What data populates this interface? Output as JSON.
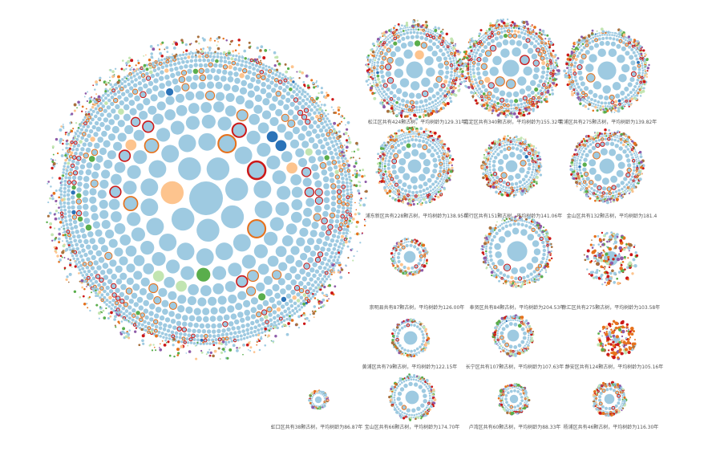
{
  "colors": {
    "base": "#9ecae1",
    "orange": "#e6711c",
    "red": "#cc1818",
    "green": "#5aae4c",
    "pale_green": "#c2e5b1",
    "peach": "#fdc48e",
    "dark_blue": "#2b73b8",
    "purple": "#8e5ba8",
    "brown": "#a8703d"
  },
  "districts": [
    {
      "id": "main",
      "caption": ""
    },
    {
      "id": "songjiang",
      "caption": "松江区共有424颗古树，平均树龄为129.31年"
    },
    {
      "id": "jiading",
      "caption": "嘉定区共有340颗古树，平均树龄为155.32年"
    },
    {
      "id": "qingpu",
      "caption": "青浦区共有275颗古树，平均树龄为139.82年"
    },
    {
      "id": "pudong",
      "caption": "浦东新区共有228颗古树，平均树龄为138.95年"
    },
    {
      "id": "minhang",
      "caption": "闵行区共有151颗古树，平均树龄为141.06年"
    },
    {
      "id": "jinshan",
      "caption": "金山区共有132颗古树，平均树龄为181.4"
    },
    {
      "id": "chongming",
      "caption": "崇明县共有87颗古树，平均树龄为126.00年"
    },
    {
      "id": "fengxian",
      "caption": "奉贤区共有84颗古树，平均树龄为204.53年"
    },
    {
      "id": "xuhui",
      "caption": "徐汇区共有275颗古树，平均树龄为103.58年"
    },
    {
      "id": "huangpu",
      "caption": "黄浦区共有79颗古树，平均树龄为122.15年"
    },
    {
      "id": "changning",
      "caption": "长宁区共有107颗古树，平均树龄为107.63年"
    },
    {
      "id": "jingan",
      "caption": "静安区共有124颗古树，平均树龄为105.16年"
    },
    {
      "id": "hongkou",
      "caption": "虹口区共有38颗古树，平均树龄为86.87年"
    },
    {
      "id": "baoshan",
      "caption": "宝山区共有66颗古树，平均树龄为174.70年"
    },
    {
      "id": "luwan",
      "caption": "卢湾区共有60颗古树，平均树龄为88.33年"
    },
    {
      "id": "yangpu",
      "caption": "杨浦区共有46颗古树，平均树龄为116.30年"
    }
  ]
}
